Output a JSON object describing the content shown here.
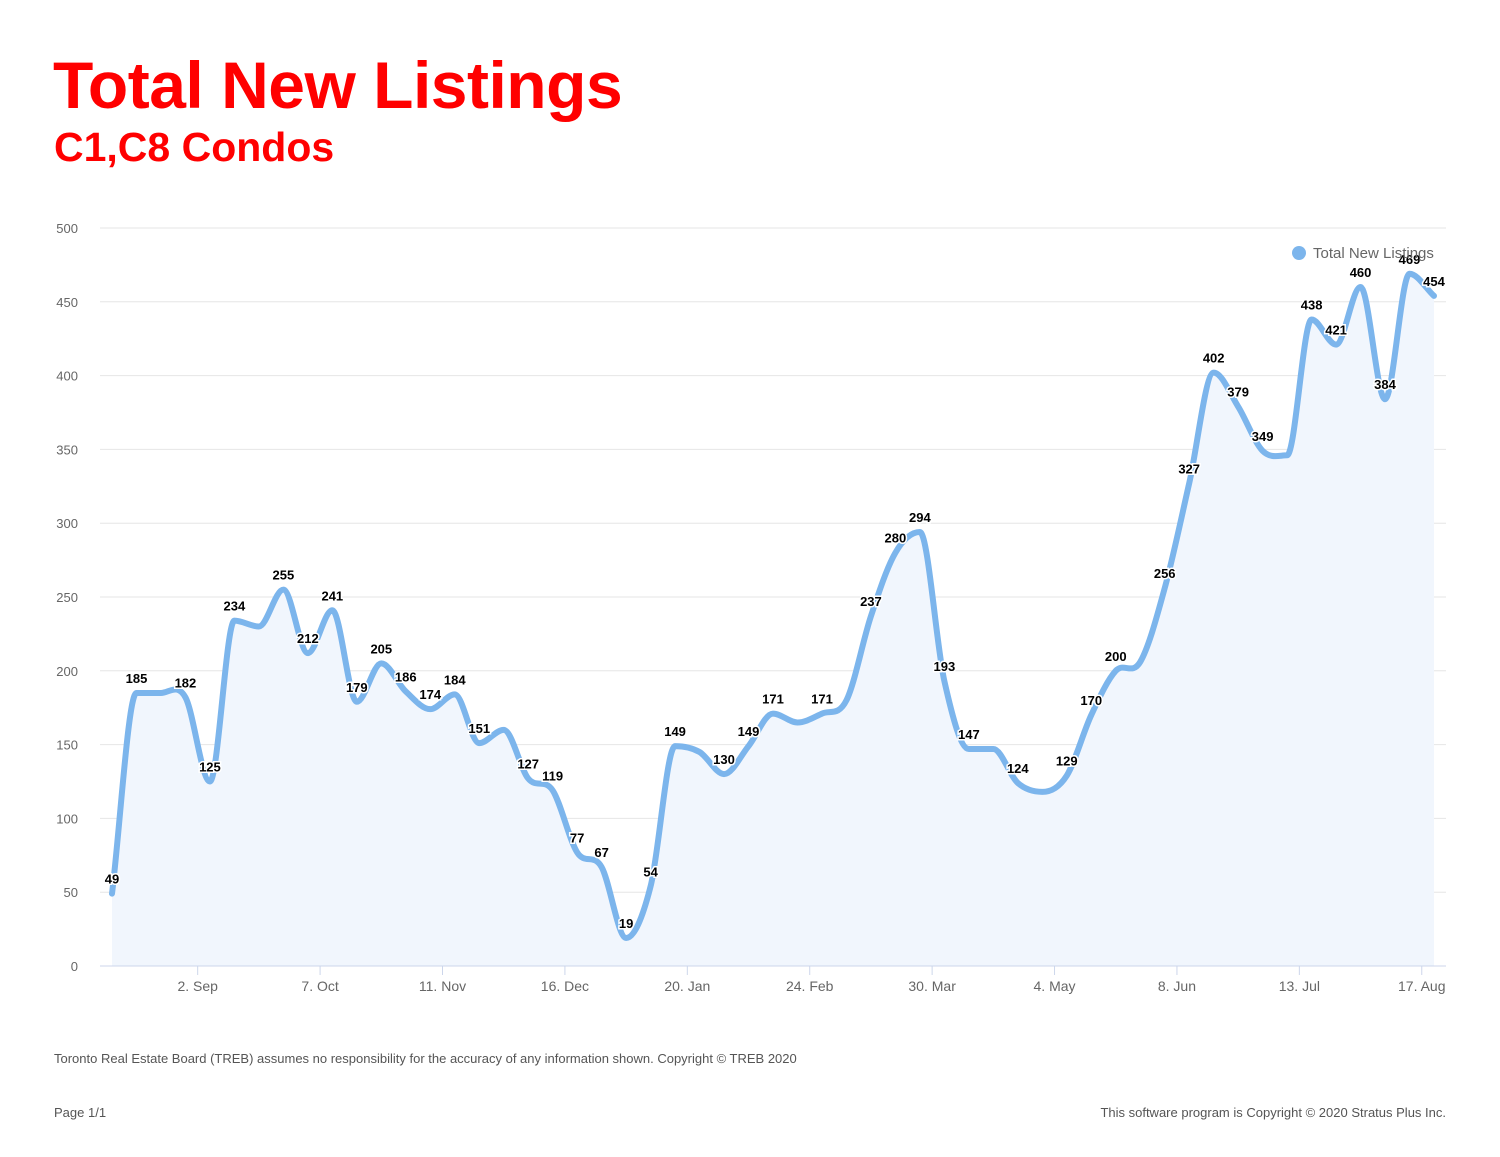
{
  "header": {
    "title": "Total New Listings",
    "subtitle": "C1,C8 Condos"
  },
  "footer": {
    "disclaimer": "Toronto Real Estate Board (TREB) assumes no responsibility for the accuracy of any information shown. Copyright © TREB 2020",
    "page": "Page 1/1",
    "copyright": "This software program is Copyright © 2020 Stratus Plus Inc."
  },
  "colors": {
    "title": "#ff0000",
    "line": "#7cb5ec",
    "area": "#f1f6fd",
    "grid": "#e6e6e6"
  },
  "chart_data": {
    "type": "area",
    "title": "Total New Listings",
    "subtitle": "C1,C8 Condos",
    "series": [
      {
        "name": "Total New Listings",
        "values": [
          49,
          185,
          185,
          182,
          125,
          234,
          230,
          255,
          212,
          241,
          179,
          205,
          186,
          174,
          184,
          151,
          160,
          127,
          119,
          77,
          67,
          19,
          54,
          149,
          145,
          130,
          149,
          171,
          165,
          171,
          180,
          237,
          280,
          294,
          193,
          147,
          147,
          124,
          118,
          129,
          170,
          200,
          206,
          256,
          327,
          402,
          379,
          349,
          346,
          438,
          421,
          460,
          384,
          469,
          454
        ]
      }
    ],
    "x_tick_labels": [
      {
        "index": 3.5,
        "label": "2. Sep"
      },
      {
        "index": 8.5,
        "label": "7. Oct"
      },
      {
        "index": 13.5,
        "label": "11. Nov"
      },
      {
        "index": 18.5,
        "label": "16. Dec"
      },
      {
        "index": 23.5,
        "label": "20. Jan"
      },
      {
        "index": 28.5,
        "label": "24. Feb"
      },
      {
        "index": 33.5,
        "label": "30. Mar"
      },
      {
        "index": 38.5,
        "label": "4. May"
      },
      {
        "index": 43.5,
        "label": "8. Jun"
      },
      {
        "index": 48.5,
        "label": "13. Jul"
      },
      {
        "index": 53.5,
        "label": "17. Aug"
      }
    ],
    "labeled_points": [
      0,
      1,
      3,
      4,
      5,
      7,
      8,
      9,
      10,
      11,
      12,
      13,
      14,
      15,
      17,
      18,
      19,
      20,
      21,
      22,
      23,
      25,
      26,
      27,
      29,
      31,
      32,
      33,
      34,
      35,
      37,
      39,
      40,
      41,
      43,
      44,
      45,
      46,
      47,
      49,
      50,
      51,
      52,
      53,
      54
    ],
    "ylim": [
      0,
      500
    ],
    "y_ticks": [
      0,
      50,
      100,
      150,
      200,
      250,
      300,
      350,
      400,
      450,
      500
    ],
    "grid": true,
    "legend": "top-right"
  }
}
